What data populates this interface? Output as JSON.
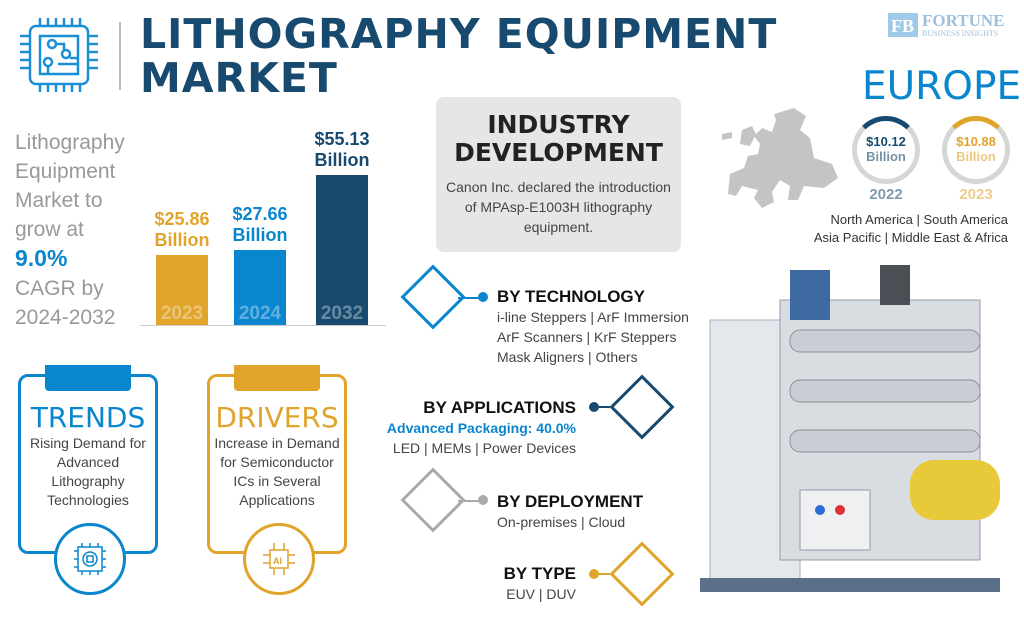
{
  "header": {
    "title_line1": "LITHOGRAPHY EQUIPMENT",
    "title_line2": "MARKET",
    "logo_brand": "FORTUNE",
    "logo_sub": "BUSINESS INSIGHTS"
  },
  "lead": {
    "line1": "Lithography",
    "line2": "Equipment",
    "line3": "Market to",
    "line4": "grow at",
    "cagr": "9.0%",
    "line5": "CAGR by",
    "line6": "2024-2032"
  },
  "chart_data": {
    "type": "bar",
    "categories": [
      "2023",
      "2024",
      "2032"
    ],
    "values": [
      25.86,
      27.66,
      55.13
    ],
    "labels": [
      "$25.86",
      "$27.66",
      "$55.13"
    ],
    "unit": "Billion",
    "colors": [
      "#e0a42b",
      "#0a86cf",
      "#174a6e"
    ],
    "ylim": [
      0,
      60
    ]
  },
  "industry": {
    "title_line1": "INDUSTRY",
    "title_line2": "DEVELOPMENT",
    "text": "Canon Inc. declared the introduction of MPAsp-E1003H lithography equipment."
  },
  "region": {
    "name": "EUROPE",
    "rings": [
      {
        "value": "$10.12",
        "unit": "Billion",
        "year": "2022",
        "color": "#174a6e",
        "fraction": 0.2
      },
      {
        "value": "$10.88",
        "unit": "Billion",
        "year": "2023",
        "color": "#e0a42b",
        "fraction": 0.25
      }
    ],
    "others_line1": "North America  |  South America",
    "others_line2": "Asia Pacific  |  Middle East & Africa"
  },
  "trends": {
    "title": "TRENDS",
    "text": "Rising Demand for Advanced Lithography Technologies",
    "color": "#0a86cf"
  },
  "drivers": {
    "title": "DRIVERS",
    "text": "Increase in Demand for Semiconductor ICs in Several Applications",
    "color": "#e0a42b"
  },
  "segments": {
    "technology": {
      "title": "BY TECHNOLOGY",
      "line1": "i-line Steppers  |  ArF Immersion",
      "line2": "ArF Scanners  |  KrF Steppers",
      "line3": "Mask Aligners  |  Others"
    },
    "applications": {
      "title": "BY APPLICATIONS",
      "highlight": "Advanced Packaging: 40.0%",
      "line1": "LED  |  MEMs  |  Power Devices"
    },
    "deployment": {
      "title": "BY DEPLOYMENT",
      "line1": "On-premises  |  Cloud"
    },
    "type": {
      "title": "BY TYPE",
      "line1": "EUV  |  DUV"
    }
  }
}
